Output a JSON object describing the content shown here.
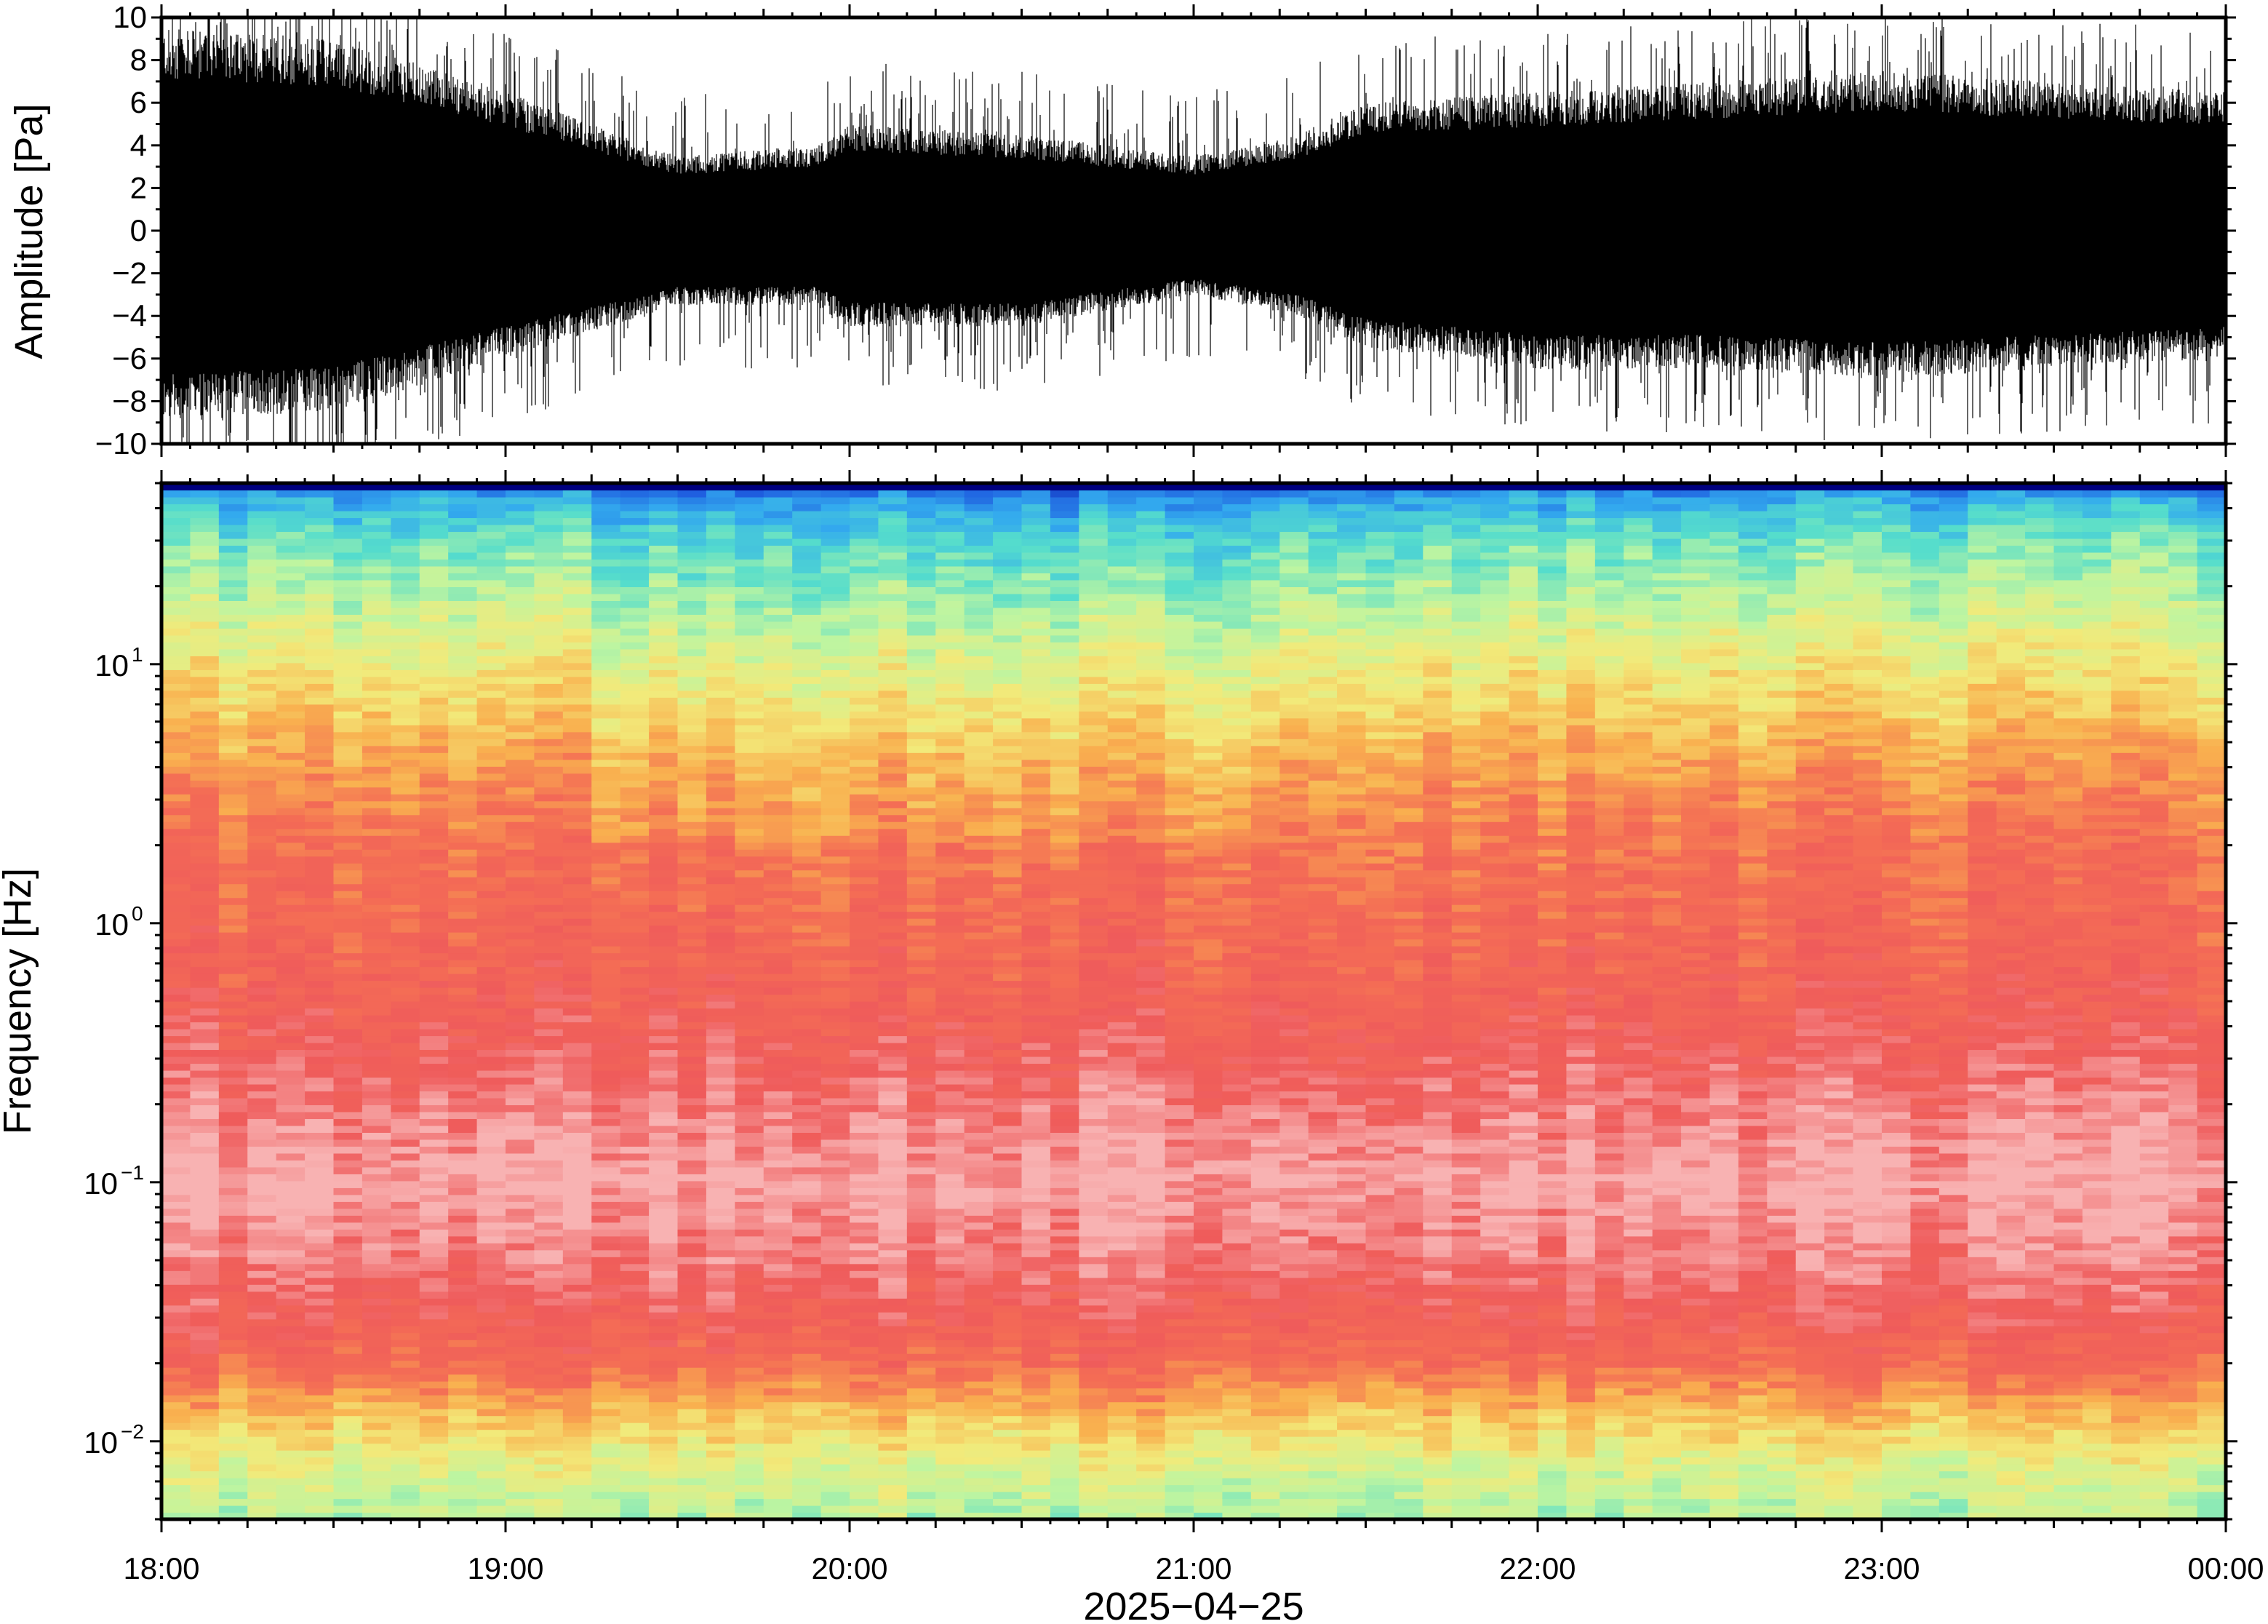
{
  "chart_data": [
    {
      "type": "line",
      "panel": "waveform",
      "ylabel": "Amplitude [Pa]",
      "ylim": [
        -10,
        10
      ],
      "yticks": [
        10,
        8,
        6,
        4,
        2,
        0,
        -2,
        -4,
        -6,
        -8,
        -10
      ],
      "ytick_labels": [
        "10",
        "8",
        "6",
        "4",
        "2",
        "0",
        "−2",
        "−4",
        "−6",
        "−8",
        "−10"
      ],
      "x_range": [
        "2025-04-25T18:00",
        "2025-04-26T00:00"
      ],
      "envelope": {
        "note_hours": [
          18.0,
          18.5,
          19.0,
          19.5,
          19.9,
          20.0,
          20.5,
          21.0,
          21.3,
          21.5,
          22.0,
          22.5,
          23.0,
          23.5,
          24.0
        ],
        "upper": [
          9.5,
          9.0,
          6.5,
          3.5,
          4.0,
          5.0,
          4.5,
          3.5,
          4.5,
          6.0,
          6.5,
          7.0,
          7.5,
          7.0,
          6.5
        ],
        "lower": [
          -9.0,
          -8.5,
          -6.0,
          -3.5,
          -3.5,
          -4.5,
          -4.5,
          -3.0,
          -4.0,
          -5.5,
          -6.5,
          -6.5,
          -7.0,
          -6.5,
          -6.0
        ]
      },
      "color": "#000000"
    },
    {
      "type": "heatmap",
      "panel": "spectrogram",
      "ylabel": "Frequency [Hz]",
      "xlabel": "2025−04−25",
      "y_scale": "log",
      "ylim": [
        0.005,
        50
      ],
      "yticks": [
        {
          "value": 0.01,
          "base": "10",
          "exp": "−2"
        },
        {
          "value": 0.1,
          "base": "10",
          "exp": "−1"
        },
        {
          "value": 1,
          "base": "10",
          "exp": "0"
        },
        {
          "value": 10,
          "base": "10",
          "exp": "1"
        }
      ],
      "x_ticks": [
        "18:00",
        "19:00",
        "20:00",
        "21:00",
        "22:00",
        "23:00",
        "00:00"
      ],
      "colormap": [
        "#00007f",
        "#1f5fe0",
        "#33aaee",
        "#55ddcc",
        "#bff5a0",
        "#f2ea7a",
        "#f9b04f",
        "#f46d55",
        "#ef5b5b",
        "#f8b2b2"
      ],
      "power_profile_by_frequency": {
        "freq_hz": [
          0.005,
          0.008,
          0.012,
          0.02,
          0.03,
          0.05,
          0.1,
          0.2,
          0.5,
          1,
          2,
          4,
          8,
          15,
          30,
          45,
          50
        ],
        "color_index": [
          4.0,
          4.6,
          5.6,
          7.2,
          7.8,
          8.4,
          9.0,
          8.4,
          7.6,
          7.3,
          7.0,
          6.3,
          5.3,
          4.4,
          3.3,
          2.0,
          0.0
        ]
      }
    }
  ]
}
